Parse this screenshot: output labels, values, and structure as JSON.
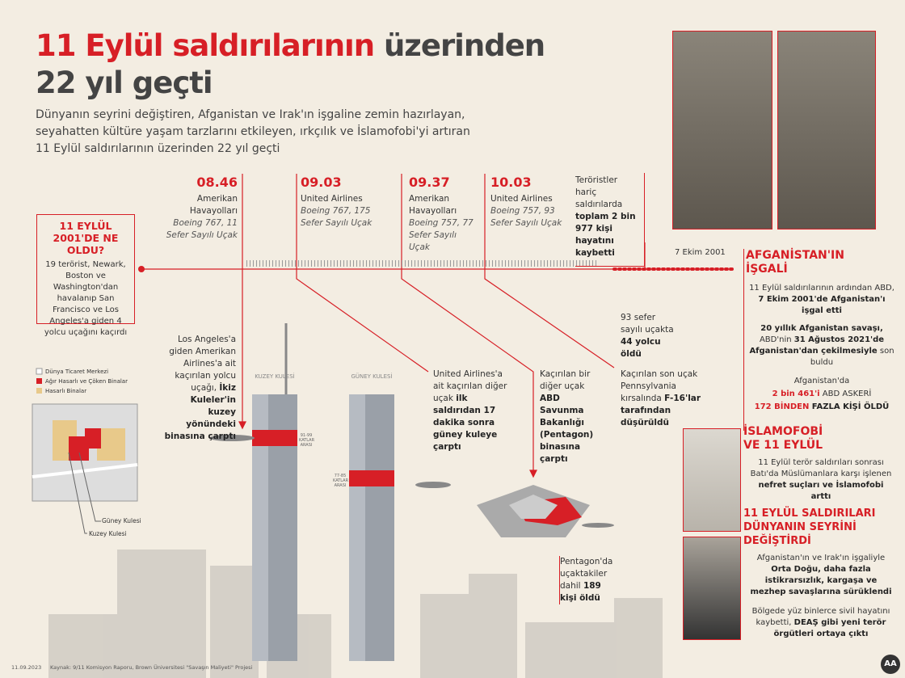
{
  "header": {
    "title_red": "11 Eylül saldırılarının",
    "title_dark": "üzerinden",
    "title_line2": "22 yıl geçti",
    "intro": "Dünyanın seyrini değiştiren, Afganistan ve Irak'ın işgaline zemin hazırlayan, seyahatten kültüre yaşam tarzlarını etkileyen, ırkçılık ve İslamofobi'yi artıran 11 Eylül saldırılarının üzerinden 22 yıl geçti"
  },
  "what_happened": {
    "heading": "11 EYLÜL 2001'DE NE OLDU?",
    "body": "19 terörist, Newark, Boston ve Washington'dan havalanıp San Francisco ve Los Angeles'a giden 4 yolcu uçağını kaçırdı"
  },
  "flights": [
    {
      "time": "08.46",
      "airline": "Amerikan Havayolları",
      "plane": "Boeing 767, 11 Sefer Sayılı Uçak"
    },
    {
      "time": "09.03",
      "airline": "United Airlines",
      "plane": "Boeing 767, 175 Sefer Sayılı Uçak"
    },
    {
      "time": "09.37",
      "airline": "Amerikan Havayolları",
      "plane": "Boeing 757, 77 Sefer Sayılı Uçak"
    },
    {
      "time": "10.03",
      "airline": "United Airlines",
      "plane": "Boeing 757, 93 Sefer Sayılı Uçak"
    }
  ],
  "total_box": [
    "Teröristler hariç saldırılarda",
    "toplam 2 bin 977 kişi hayatını kaybetti"
  ],
  "timeline_date": "7 Ekim 2001",
  "descriptions": {
    "north": [
      "Los Angeles'a giden Amerikan Airlines'a ait kaçırılan yolcu uçağı, ",
      "İkiz Kuleler'in kuzey yönündeki binasına çarptı"
    ],
    "south": [
      "United Airlines'a ait kaçırılan diğer uçak ",
      "ilk saldırıdan 17 dakika sonra güney kuleye çarptı"
    ],
    "pentagon": [
      "Kaçırılan bir diğer uçak ",
      "ABD Savunma Bakanlığı (Pentagon) binasına çarptı"
    ],
    "pennsylvania": [
      "Kaçırılan son uçak Pennsylvania kırsalında ",
      "F-16'lar tarafından düşürüldü"
    ],
    "flight93": [
      "93 sefer sayılı uçakta ",
      "44 yolcu öldü"
    ],
    "pentagon_deaths": [
      "Pentagon'da uçaktakiler dahil ",
      "189 kişi öldü"
    ]
  },
  "towers": {
    "north": "KUZEY KULESİ",
    "south": "GÜNEY KULESİ",
    "north_floors": "91-99 KATLAR ARASI",
    "south_floors": "77-85 KATLAR ARASI"
  },
  "map": {
    "legend": [
      "Dünya Ticaret Merkezi",
      "Ağır Hasarlı ve Çöken Binalar",
      "Hasarlı Binalar"
    ],
    "south_label": "Güney Kulesi",
    "north_label": "Kuzey Kulesi"
  },
  "afghanistan": {
    "heading": "AFGANİSTAN'IN İŞGALİ",
    "p1": [
      "11 Eylül saldırılarının ardından ABD, ",
      "7 Ekim 2001'de Afganistan'ı işgal etti"
    ],
    "p2": [
      "20 yıllık Afganistan savaşı,",
      " ABD'nin ",
      "31 Ağustos 2021'de Afganistan'dan çekilmesiyle",
      " son buldu"
    ],
    "p3": [
      "Afganistan'da",
      "2 bin 461'i",
      " ABD ASKERİ",
      "172 BİNDEN",
      " FAZLA KİŞİ ÖLDÜ"
    ]
  },
  "islamophobia": {
    "heading": "İSLAMOFOBİ VE 11 EYLÜL",
    "p1": [
      "11 Eylül terör saldırıları sonrası Batı'da Müslümanlara karşı işlenen ",
      "nefret suçları ve İslamofobi arttı"
    ]
  },
  "world": {
    "heading": "11 EYLÜL SALDIRILARI DÜNYANIN SEYRİNİ DEĞİŞTİRDİ",
    "p1": [
      "Afganistan'ın ve Irak'ın işgaliyle ",
      "Orta Doğu, daha fazla istikrarsızlık, kargaşa ve mezhep savaşlarına sürüklendi"
    ],
    "p2": [
      "Bölgede yüz binlerce sivil hayatını kaybetti, ",
      "DEAŞ gibi yeni terör örgütleri ortaya çıktı"
    ]
  },
  "footer": {
    "date": "11.09.2023",
    "source": "Kaynak: 9/11 Komisyon Raporu, Brown Üniversitesi \"Savaşın Maliyeti\" Projesi",
    "logo": "AA"
  }
}
